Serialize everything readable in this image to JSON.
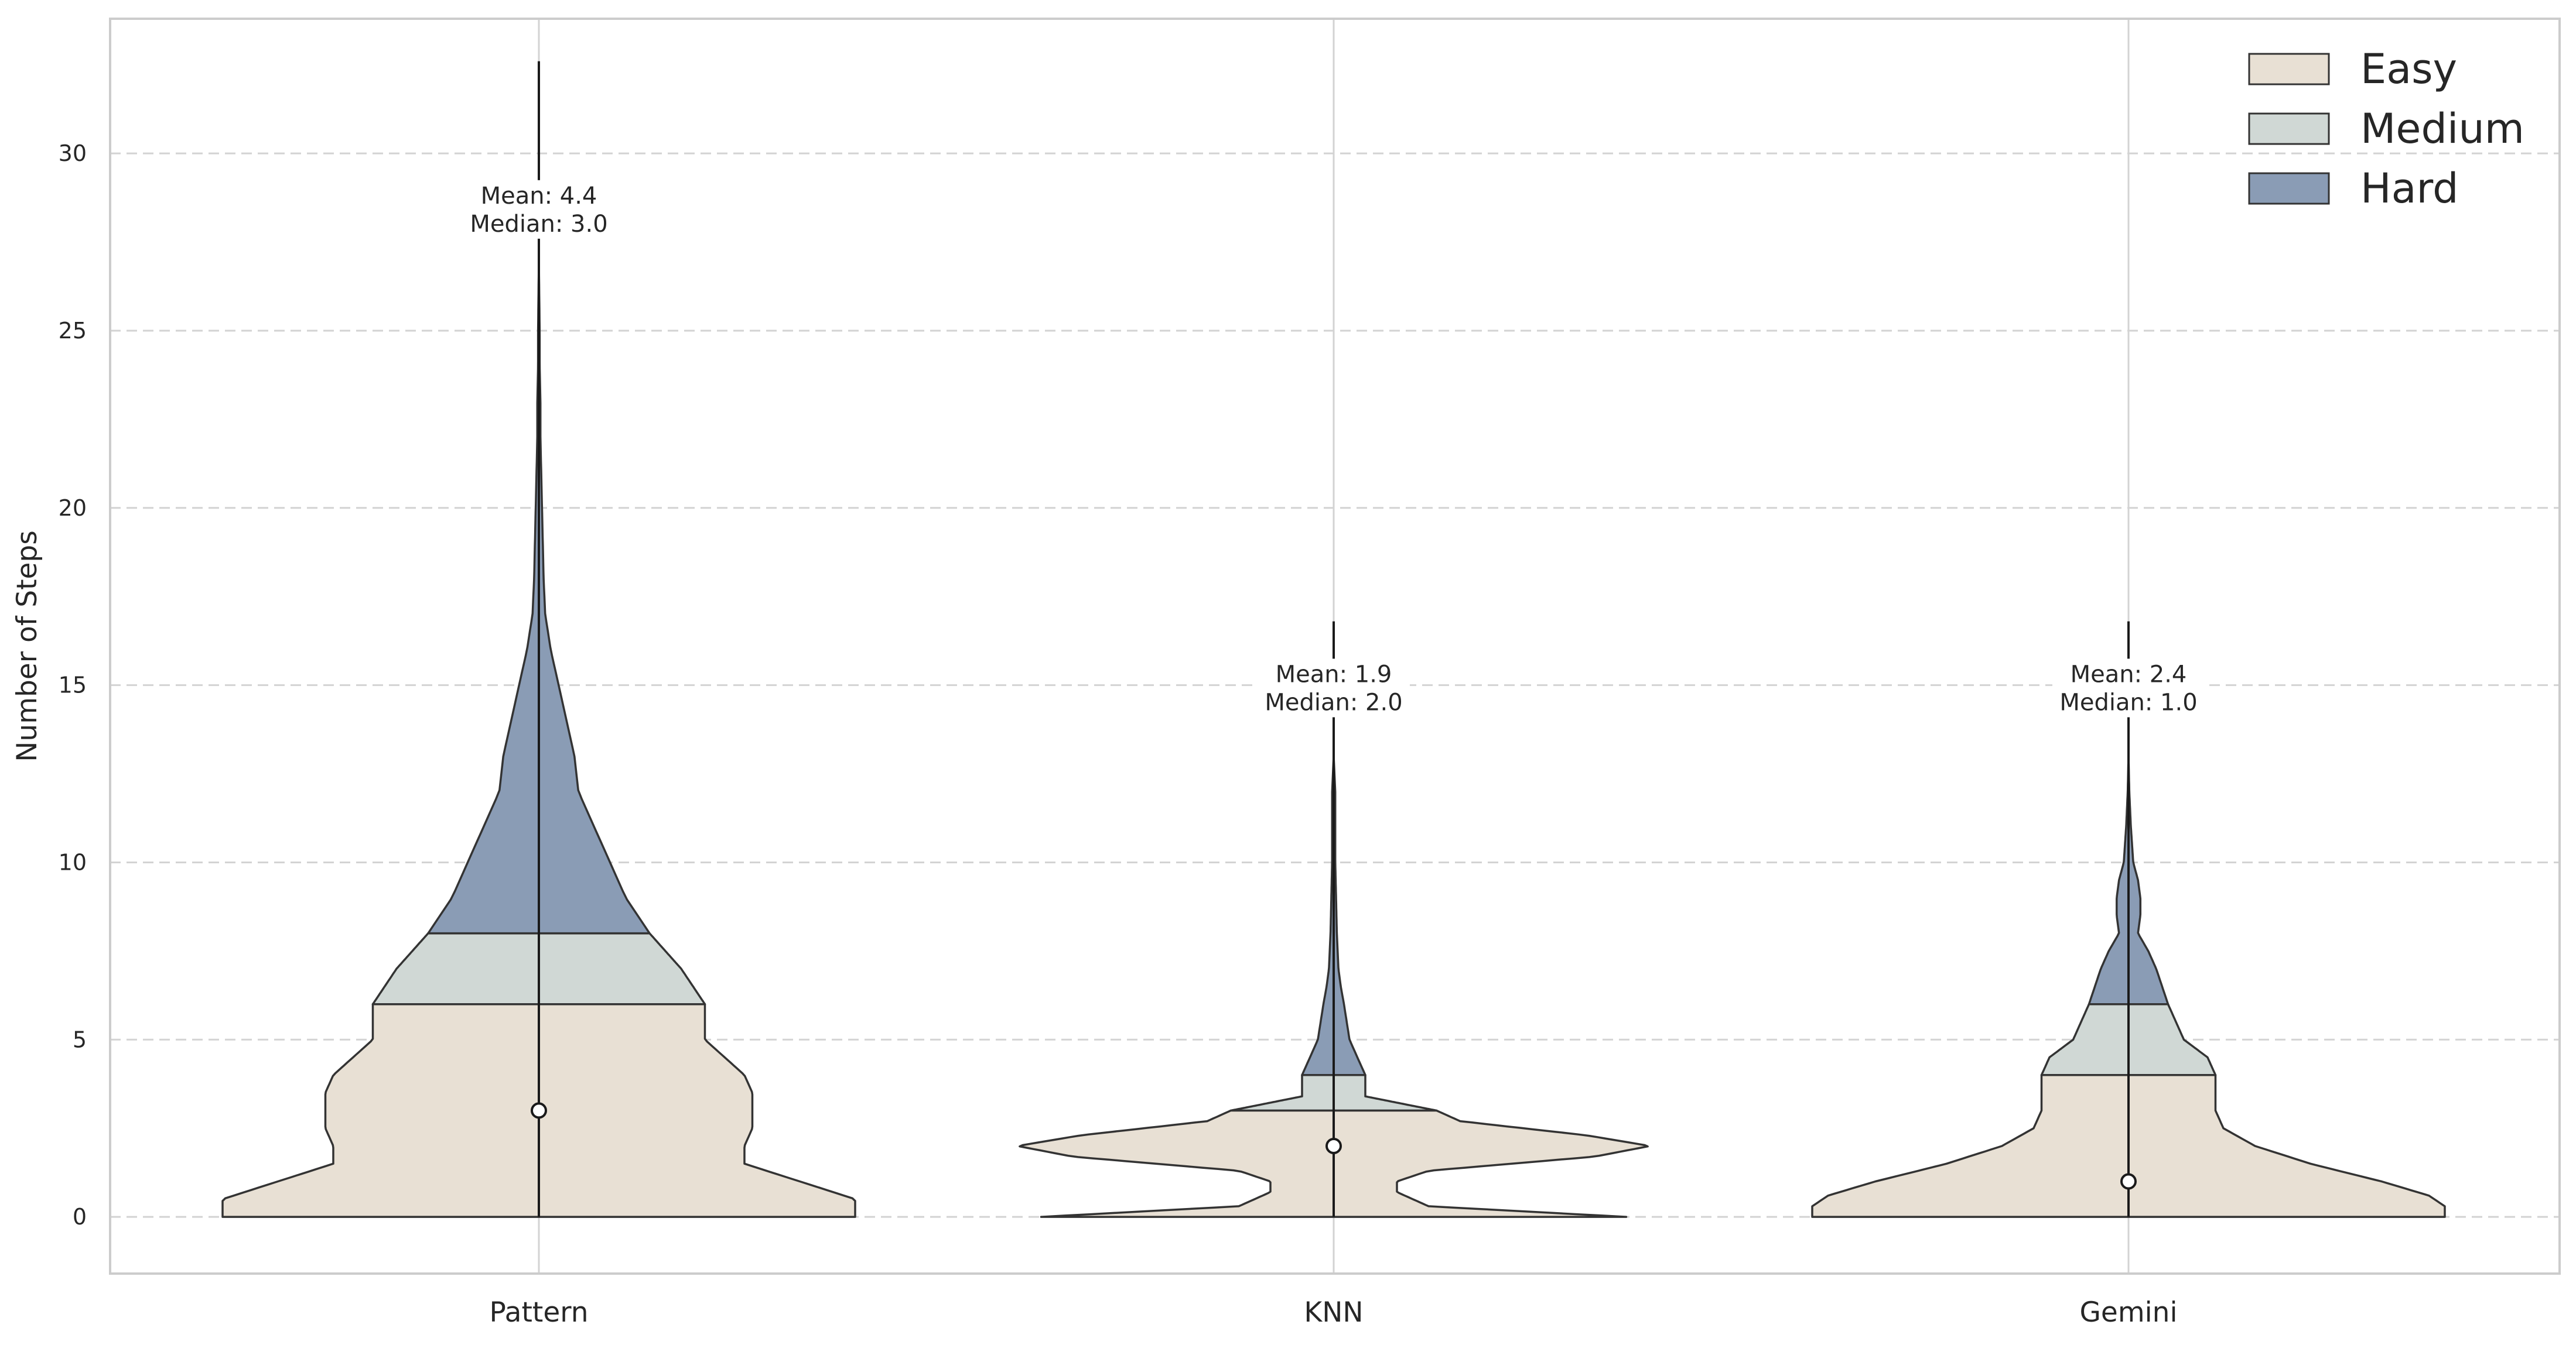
{
  "chart_data": {
    "type": "violin",
    "title": "",
    "xlabel": "",
    "ylabel": "Number of Steps",
    "ylim": [
      -1.6,
      33.8
    ],
    "yticks": [
      0,
      5,
      10,
      15,
      20,
      25,
      30
    ],
    "categories": [
      "Pattern",
      "KNN",
      "Gemini"
    ],
    "grid": "on",
    "legend_placement": "top-right",
    "legend": [
      {
        "label": "Easy",
        "color": "#e8e0d4"
      },
      {
        "label": "Medium",
        "color": "#d0d8d5"
      },
      {
        "label": "Hard",
        "color": "#8a9cb5"
      }
    ],
    "violins": [
      {
        "category": "Pattern",
        "easy_max": 6.0,
        "medium_max": 8.0,
        "whisker": [
          0,
          7.0
        ],
        "range": [
          0,
          32.6
        ],
        "median": 3.0,
        "annotation": {
          "mean": "Mean: 4.4",
          "median": "Median: 3.0"
        },
        "profile": [
          [
            0,
            0.4
          ],
          [
            0.5,
            0.4
          ],
          [
            1,
            0.33
          ],
          [
            1.5,
            0.26
          ],
          [
            2,
            0.26
          ],
          [
            2.5,
            0.27
          ],
          [
            3,
            0.27
          ],
          [
            3.5,
            0.27
          ],
          [
            4,
            0.26
          ],
          [
            5,
            0.21
          ],
          [
            6,
            0.21
          ],
          [
            7,
            0.18
          ],
          [
            8,
            0.14
          ],
          [
            9,
            0.11
          ],
          [
            10,
            0.09
          ],
          [
            11,
            0.07
          ],
          [
            12,
            0.05
          ],
          [
            13,
            0.045
          ],
          [
            14,
            0.035
          ],
          [
            15,
            0.025
          ],
          [
            16,
            0.015
          ],
          [
            17,
            0.008
          ],
          [
            18,
            0.006
          ],
          [
            19,
            0.005
          ],
          [
            20,
            0.004
          ],
          [
            21,
            0.003
          ],
          [
            22,
            0.002
          ],
          [
            23,
            0.002
          ],
          [
            24,
            0.001
          ],
          [
            25,
            0.001
          ],
          [
            26,
            0.0005
          ],
          [
            27,
            0.0
          ]
        ]
      },
      {
        "category": "KNN",
        "easy_max": 3.0,
        "medium_max": 4.0,
        "whisker": [
          0,
          3.0
        ],
        "range": [
          0,
          16.8
        ],
        "median": 2.0,
        "annotation": {
          "mean": "Mean: 1.9",
          "median": "Median: 2.0"
        },
        "profile": [
          [
            0,
            0.37
          ],
          [
            0.3,
            0.12
          ],
          [
            0.7,
            0.08
          ],
          [
            1,
            0.08
          ],
          [
            1.3,
            0.12
          ],
          [
            1.7,
            0.33
          ],
          [
            2,
            0.4
          ],
          [
            2.3,
            0.32
          ],
          [
            2.7,
            0.16
          ],
          [
            3,
            0.13
          ],
          [
            3.4,
            0.04
          ],
          [
            4,
            0.04
          ],
          [
            5,
            0.02
          ],
          [
            6,
            0.013
          ],
          [
            6.5,
            0.009
          ],
          [
            7,
            0.006
          ],
          [
            8,
            0.004
          ],
          [
            9,
            0.003
          ],
          [
            10,
            0.002
          ],
          [
            11,
            0.002
          ],
          [
            12,
            0.002
          ],
          [
            13,
            0.0
          ]
        ]
      },
      {
        "category": "Gemini",
        "easy_max": 4.0,
        "medium_max": 6.0,
        "whisker": [
          0,
          4.0
        ],
        "range": [
          0,
          16.8
        ],
        "median": 1.0,
        "annotation": {
          "mean": "Mean: 2.4",
          "median": "Median: 1.0"
        },
        "profile": [
          [
            0,
            0.4
          ],
          [
            0.3,
            0.4
          ],
          [
            0.6,
            0.38
          ],
          [
            1,
            0.32
          ],
          [
            1.5,
            0.23
          ],
          [
            2,
            0.16
          ],
          [
            2.5,
            0.12
          ],
          [
            3,
            0.11
          ],
          [
            3.5,
            0.11
          ],
          [
            4,
            0.11
          ],
          [
            4.5,
            0.1
          ],
          [
            5,
            0.07
          ],
          [
            6,
            0.05
          ],
          [
            7,
            0.035
          ],
          [
            7.5,
            0.025
          ],
          [
            8,
            0.012
          ],
          [
            8.5,
            0.015
          ],
          [
            9,
            0.015
          ],
          [
            9.5,
            0.012
          ],
          [
            10,
            0.006
          ],
          [
            11,
            0.003
          ],
          [
            12,
            0.001
          ],
          [
            13,
            0.0
          ]
        ]
      }
    ]
  }
}
